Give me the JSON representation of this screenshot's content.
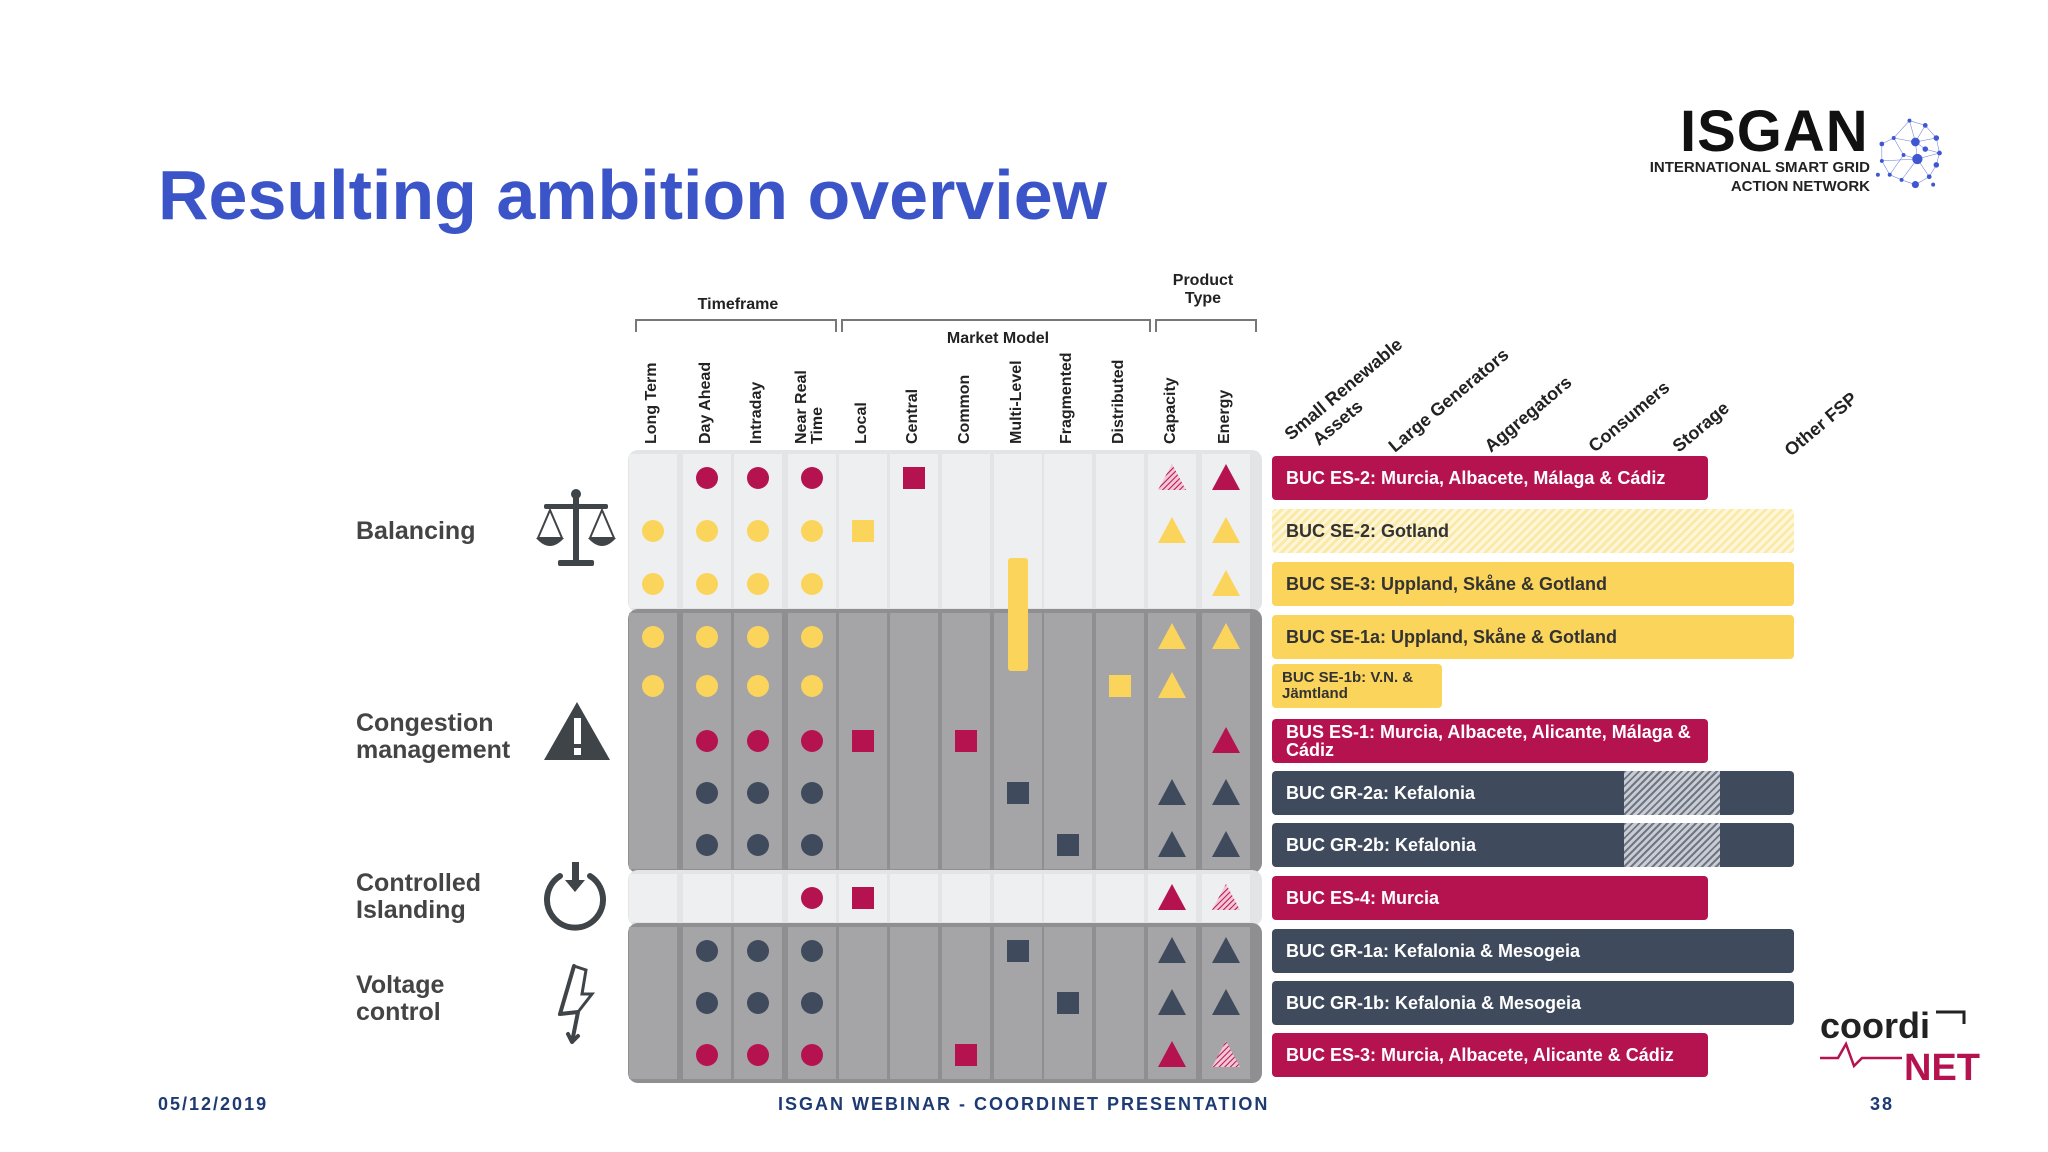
{
  "title": "Resulting ambition overview",
  "logo": {
    "name": "ISGAN",
    "subtitle_line1": "INTERNATIONAL SMART GRID",
    "subtitle_line2": "ACTION NETWORK"
  },
  "coordinet_logo": "coordiNET",
  "footer": {
    "date": "05/12/2019",
    "center": "ISGAN WEBINAR - COORDINET PRESENTATION",
    "page": "38"
  },
  "groups": [
    {
      "label_line1": "",
      "label_line2": "Timeframe"
    },
    {
      "label_line1": "",
      "label_line2": "Market Model"
    },
    {
      "label_line1": "Product",
      "label_line2": "Type"
    }
  ],
  "columns": [
    "Long Term",
    "Day Ahead",
    "Intraday",
    "Near Real Time",
    "Local",
    "Central",
    "Common",
    "Multi-Level",
    "Fragmented",
    "Distributed",
    "Capacity",
    "Energy"
  ],
  "fsp_columns": [
    {
      "line1": "Small Renewable",
      "line2": "Assets"
    },
    {
      "line1": "Large Generators",
      "line2": ""
    },
    {
      "line1": "Aggregators",
      "line2": ""
    },
    {
      "line1": "Consumers",
      "line2": ""
    },
    {
      "line1": "Storage",
      "line2": ""
    },
    {
      "line1": "Other FSP",
      "line2": ""
    }
  ],
  "services": [
    {
      "name": "Balancing",
      "line1": "Balancing",
      "line2": "",
      "icon": "scales-icon"
    },
    {
      "name": "Congestion management",
      "line1": "Congestion",
      "line2": "management",
      "icon": "warning-icon"
    },
    {
      "name": "Controlled Islanding",
      "line1": "Controlled",
      "line2": "Islanding",
      "icon": "power-icon"
    },
    {
      "name": "Voltage control",
      "line1": "Voltage",
      "line2": "control",
      "icon": "lightning-icon"
    }
  ],
  "colors": {
    "magenta": "#b5134f",
    "yellow": "#fbd45b",
    "slate": "#3f4a5c",
    "title_blue": "#3b55c8",
    "footer_blue": "#1e3a73"
  },
  "rows": [
    {
      "service": "Balancing",
      "bucs": [
        {
          "label": "BUC ES-2: Murcia, Albacete, Málaga & Cádiz",
          "color": "magenta"
        }
      ],
      "marks": [
        {
          "col": 1,
          "shape": "circle",
          "color": "magenta"
        },
        {
          "col": 2,
          "shape": "circle",
          "color": "magenta"
        },
        {
          "col": 3,
          "shape": "circle",
          "color": "magenta"
        },
        {
          "col": 5,
          "shape": "square",
          "color": "magenta"
        },
        {
          "col": 10,
          "shape": "triangle-hatch",
          "color": "magenta"
        },
        {
          "col": 11,
          "shape": "triangle",
          "color": "magenta"
        }
      ]
    },
    {
      "service": "Balancing",
      "bucs": [
        {
          "label": "BUC SE-2: Gotland",
          "color": "yellow-hatch"
        }
      ],
      "marks": [
        {
          "col": 0,
          "shape": "circle",
          "color": "yellow"
        },
        {
          "col": 1,
          "shape": "circle",
          "color": "yellow"
        },
        {
          "col": 2,
          "shape": "circle",
          "color": "yellow"
        },
        {
          "col": 3,
          "shape": "circle",
          "color": "yellow"
        },
        {
          "col": 4,
          "shape": "square",
          "color": "yellow"
        },
        {
          "col": 10,
          "shape": "triangle",
          "color": "yellow"
        },
        {
          "col": 11,
          "shape": "triangle",
          "color": "yellow"
        }
      ]
    },
    {
      "service": "Balancing",
      "bucs": [
        {
          "label": "BUC SE-3: Uppland, Skåne & Gotland",
          "color": "yellow"
        }
      ],
      "marks": [
        {
          "col": 0,
          "shape": "circle",
          "color": "yellow"
        },
        {
          "col": 1,
          "shape": "circle",
          "color": "yellow"
        },
        {
          "col": 2,
          "shape": "circle",
          "color": "yellow"
        },
        {
          "col": 3,
          "shape": "circle",
          "color": "yellow"
        },
        {
          "col": 11,
          "shape": "triangle",
          "color": "yellow"
        }
      ]
    },
    {
      "service": "Congestion management",
      "bucs": [
        {
          "label": "BUC SE-1a: Uppland, Skåne & Gotland",
          "color": "yellow"
        }
      ],
      "marks": [
        {
          "col": 0,
          "shape": "circle",
          "color": "yellow"
        },
        {
          "col": 1,
          "shape": "circle",
          "color": "yellow"
        },
        {
          "col": 2,
          "shape": "circle",
          "color": "yellow"
        },
        {
          "col": 3,
          "shape": "circle",
          "color": "yellow"
        },
        {
          "col": 10,
          "shape": "triangle",
          "color": "yellow"
        },
        {
          "col": 11,
          "shape": "triangle",
          "color": "yellow"
        }
      ]
    },
    {
      "service": "Congestion management",
      "bucs": [
        {
          "label": "BUC SE-1b: V.N. & Jämtland",
          "color": "yellow"
        }
      ],
      "marks": [
        {
          "col": 0,
          "shape": "circle",
          "color": "yellow"
        },
        {
          "col": 1,
          "shape": "circle",
          "color": "yellow"
        },
        {
          "col": 2,
          "shape": "circle",
          "color": "yellow"
        },
        {
          "col": 3,
          "shape": "circle",
          "color": "yellow"
        },
        {
          "col": 9,
          "shape": "square",
          "color": "yellow"
        },
        {
          "col": 10,
          "shape": "triangle",
          "color": "yellow"
        }
      ]
    },
    {
      "service": "Congestion management",
      "bucs": [
        {
          "label": "BUS ES-1: Murcia, Albacete, Alicante, Málaga & Cádiz",
          "color": "magenta"
        }
      ],
      "marks": [
        {
          "col": 1,
          "shape": "circle",
          "color": "magenta"
        },
        {
          "col": 2,
          "shape": "circle",
          "color": "magenta"
        },
        {
          "col": 3,
          "shape": "circle",
          "color": "magenta"
        },
        {
          "col": 4,
          "shape": "square",
          "color": "magenta"
        },
        {
          "col": 6,
          "shape": "square",
          "color": "magenta"
        },
        {
          "col": 11,
          "shape": "triangle",
          "color": "magenta"
        }
      ]
    },
    {
      "service": "Congestion management",
      "bucs": [
        {
          "label": "BUC GR-2a: Kefalonia",
          "color": "slate"
        }
      ],
      "marks": [
        {
          "col": 1,
          "shape": "circle",
          "color": "slate"
        },
        {
          "col": 2,
          "shape": "circle",
          "color": "slate"
        },
        {
          "col": 3,
          "shape": "circle",
          "color": "slate"
        },
        {
          "col": 7,
          "shape": "square",
          "color": "slate"
        },
        {
          "col": 10,
          "shape": "triangle",
          "color": "slate"
        },
        {
          "col": 11,
          "shape": "triangle",
          "color": "slate"
        }
      ]
    },
    {
      "service": "Congestion management",
      "bucs": [
        {
          "label": "BUC GR-2b: Kefalonia",
          "color": "slate"
        }
      ],
      "marks": [
        {
          "col": 1,
          "shape": "circle",
          "color": "slate"
        },
        {
          "col": 2,
          "shape": "circle",
          "color": "slate"
        },
        {
          "col": 3,
          "shape": "circle",
          "color": "slate"
        },
        {
          "col": 8,
          "shape": "square",
          "color": "slate"
        },
        {
          "col": 10,
          "shape": "triangle",
          "color": "slate"
        },
        {
          "col": 11,
          "shape": "triangle",
          "color": "slate"
        }
      ]
    },
    {
      "service": "Controlled Islanding",
      "bucs": [
        {
          "label": "BUC ES-4: Murcia",
          "color": "magenta"
        }
      ],
      "marks": [
        {
          "col": 3,
          "shape": "circle",
          "color": "magenta"
        },
        {
          "col": 4,
          "shape": "square",
          "color": "magenta"
        },
        {
          "col": 10,
          "shape": "triangle",
          "color": "magenta"
        },
        {
          "col": 11,
          "shape": "triangle-hatch",
          "color": "magenta"
        }
      ]
    },
    {
      "service": "Voltage control",
      "bucs": [
        {
          "label": "BUC GR-1a: Kefalonia & Mesogeia",
          "color": "slate"
        }
      ],
      "marks": [
        {
          "col": 1,
          "shape": "circle",
          "color": "slate"
        },
        {
          "col": 2,
          "shape": "circle",
          "color": "slate"
        },
        {
          "col": 3,
          "shape": "circle",
          "color": "slate"
        },
        {
          "col": 7,
          "shape": "square",
          "color": "slate"
        },
        {
          "col": 10,
          "shape": "triangle",
          "color": "slate"
        },
        {
          "col": 11,
          "shape": "triangle",
          "color": "slate"
        }
      ]
    },
    {
      "service": "Voltage control",
      "bucs": [
        {
          "label": "BUC GR-1b: Kefalonia & Mesogeia",
          "color": "slate"
        }
      ],
      "marks": [
        {
          "col": 1,
          "shape": "circle",
          "color": "slate"
        },
        {
          "col": 2,
          "shape": "circle",
          "color": "slate"
        },
        {
          "col": 3,
          "shape": "circle",
          "color": "slate"
        },
        {
          "col": 8,
          "shape": "square",
          "color": "slate"
        },
        {
          "col": 10,
          "shape": "triangle",
          "color": "slate"
        },
        {
          "col": 11,
          "shape": "triangle",
          "color": "slate"
        }
      ]
    },
    {
      "service": "Voltage control",
      "bucs": [
        {
          "label": "BUC ES-3: Murcia, Albacete, Alicante & Cádiz",
          "color": "magenta"
        }
      ],
      "marks": [
        {
          "col": 1,
          "shape": "circle",
          "color": "magenta"
        },
        {
          "col": 2,
          "shape": "circle",
          "color": "magenta"
        },
        {
          "col": 3,
          "shape": "circle",
          "color": "magenta"
        },
        {
          "col": 6,
          "shape": "square",
          "color": "magenta"
        },
        {
          "col": 10,
          "shape": "triangle",
          "color": "magenta"
        },
        {
          "col": 11,
          "shape": "triangle-hatch",
          "color": "magenta"
        }
      ]
    }
  ],
  "multi_level_bar": {
    "col": 7,
    "color": "yellow",
    "from_row": 2,
    "to_row": 3
  }
}
